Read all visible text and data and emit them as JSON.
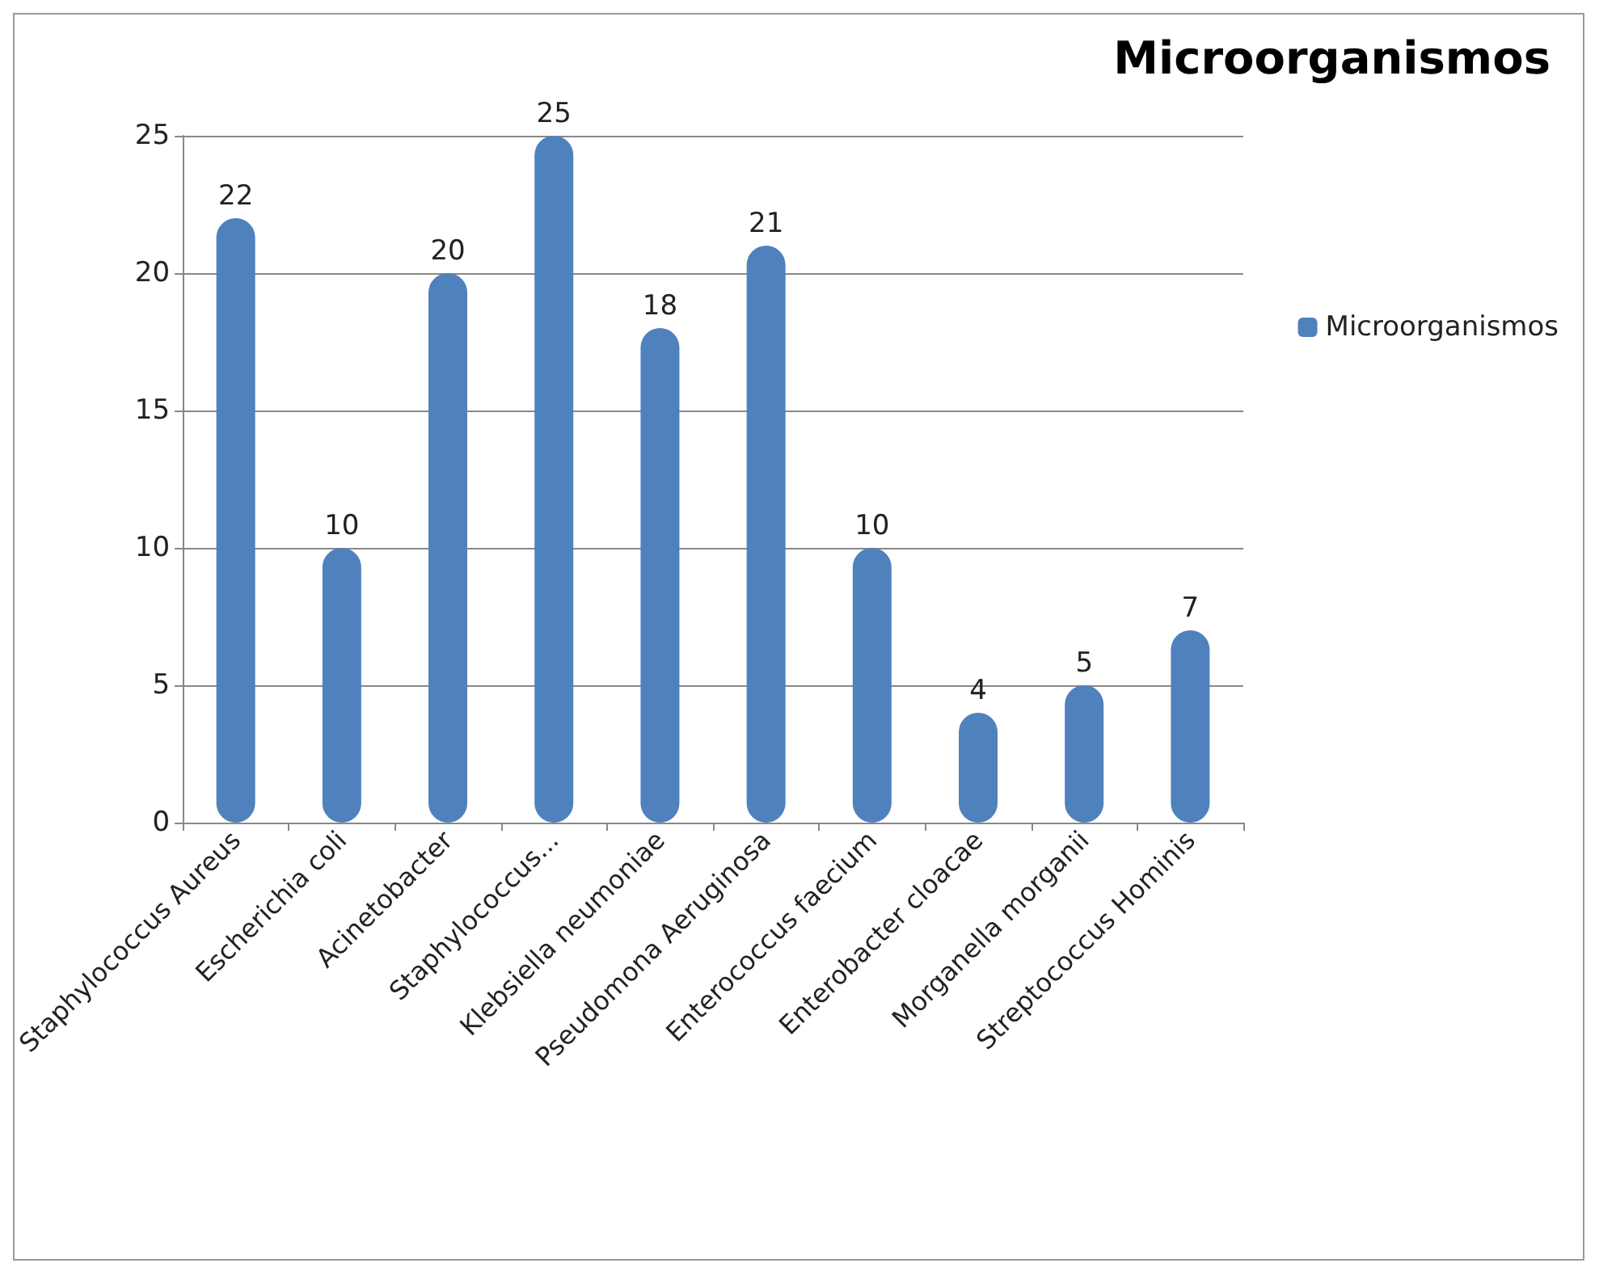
{
  "chart_data": {
    "type": "bar",
    "title": "Microorganismos",
    "categories": [
      "Staphylococcus Aureus",
      "Escherichia coli",
      "Acinetobacter",
      "Staphylococcus...",
      "Klebsiella neumoniae",
      "Pseudomona Aeruginosa",
      "Enterococcus faecium",
      "Enterobacter cloacae",
      "Morganella morganii",
      "Streptococcus Hominis"
    ],
    "series": [
      {
        "name": "Microorganismos",
        "color": "#4f81bd",
        "values": [
          22,
          10,
          20,
          25,
          18,
          21,
          10,
          4,
          5,
          7
        ]
      }
    ],
    "ylim": [
      0,
      25
    ],
    "yticks": [
      0,
      5,
      10,
      15,
      20,
      25
    ],
    "grid": "y",
    "legend": "right",
    "data_labels": true
  }
}
